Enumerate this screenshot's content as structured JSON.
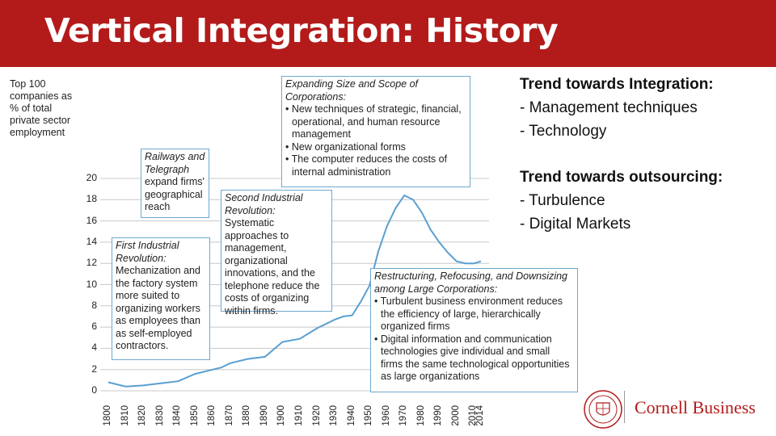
{
  "slide": {
    "title": "Vertical Integration: History",
    "right": {
      "block1": {
        "heading": "Trend towards Integration:",
        "items": [
          "-  Management techniques",
          "-  Technology"
        ]
      },
      "block2": {
        "heading": "Trend towards outsourcing:",
        "items": [
          "-  Turbulence",
          "-  Digital Markets"
        ]
      }
    },
    "logo": {
      "text": "Cornell Business"
    }
  },
  "chart_data": {
    "type": "line",
    "ylabel": "Top 100 companies as % of total private sector employment",
    "ylim": [
      0,
      20
    ],
    "yticks": [
      "0",
      "2",
      "4",
      "6",
      "8",
      "10",
      "12",
      "14",
      "16",
      "18",
      "20"
    ],
    "xticks": [
      "1800",
      "1810",
      "1820",
      "1830",
      "1840",
      "1850",
      "1860",
      "1870",
      "1880",
      "1890",
      "1900",
      "1910",
      "1920",
      "1930",
      "1940",
      "1950",
      "1960",
      "1970",
      "1980",
      "1990",
      "2000",
      "2010",
      "2014"
    ],
    "grid": true,
    "series": [
      {
        "x": [
          1800,
          1810,
          1820,
          1830,
          1840,
          1850,
          1860,
          1865,
          1870,
          1880,
          1890,
          1900,
          1910,
          1920,
          1925,
          1930,
          1935,
          1940,
          1945,
          1950,
          1955,
          1960,
          1965,
          1970,
          1975,
          1980,
          1985,
          1990,
          1995,
          2000,
          2005,
          2010,
          2014
        ],
        "y": [
          0.8,
          0.4,
          0.5,
          0.7,
          0.9,
          1.6,
          2.0,
          2.2,
          2.6,
          3.0,
          3.2,
          4.6,
          4.9,
          5.9,
          6.3,
          6.7,
          7.0,
          7.1,
          8.4,
          9.9,
          13.1,
          15.5,
          17.2,
          18.4,
          18.0,
          16.8,
          15.2,
          14.0,
          13.0,
          12.2,
          12.0,
          12.0,
          12.2
        ]
      }
    ],
    "callouts": {
      "first": {
        "heading": "First Industrial Revolution:",
        "body": "Mechanization and the factory system more suited to organizing workers as employees than as self-employed contractors."
      },
      "railways": {
        "heading": "Railways and Telegraph",
        "body": "expand firms' geographical reach"
      },
      "second": {
        "heading": "Second Industrial Revolution:",
        "body": "Systematic approaches to management, organizational innovations, and the telephone reduce the costs of organizing within firms."
      },
      "expanding": {
        "heading": "Expanding Size and Scope of Corporations:",
        "bullets": [
          "• New techniques of strategic, financial, operational, and human resource management",
          "• New organizational forms",
          "• The computer reduces the costs of internal administration"
        ]
      },
      "restructuring": {
        "heading": "Restructuring, Refocusing, and Downsizing among Large Corporations:",
        "bullets": [
          "• Turbulent business environment reduces the efficiency of large, hierarchically organized firms",
          "• Digital information and communication technologies give individual and small firms the same technological opportunities as large organizations"
        ]
      }
    }
  }
}
